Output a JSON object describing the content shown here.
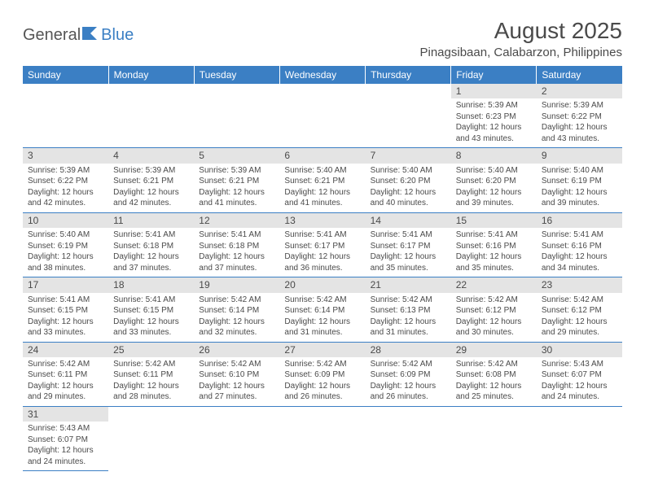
{
  "logo": {
    "text1": "General",
    "text2": "Blue"
  },
  "title": "August 2025",
  "location": "Pinagsibaan, Calabarzon, Philippines",
  "colors": {
    "header_bg": "#3b7fc4",
    "header_fg": "#ffffff",
    "daynum_bg": "#e4e4e4",
    "text": "#4a4a4a",
    "border": "#3b7fc4",
    "logo_accent": "#3b7fc4"
  },
  "weekdays": [
    "Sunday",
    "Monday",
    "Tuesday",
    "Wednesday",
    "Thursday",
    "Friday",
    "Saturday"
  ],
  "sunrise_label": "Sunrise",
  "sunset_label": "Sunset",
  "daylight_label": "Daylight",
  "hours_word": "hours",
  "minutes_word": "minutes",
  "and_word": "and",
  "days": [
    {
      "n": 1,
      "sr": "5:39 AM",
      "ss": "6:23 PM",
      "dh": 12,
      "dm": 43
    },
    {
      "n": 2,
      "sr": "5:39 AM",
      "ss": "6:22 PM",
      "dh": 12,
      "dm": 43
    },
    {
      "n": 3,
      "sr": "5:39 AM",
      "ss": "6:22 PM",
      "dh": 12,
      "dm": 42
    },
    {
      "n": 4,
      "sr": "5:39 AM",
      "ss": "6:21 PM",
      "dh": 12,
      "dm": 42
    },
    {
      "n": 5,
      "sr": "5:39 AM",
      "ss": "6:21 PM",
      "dh": 12,
      "dm": 41
    },
    {
      "n": 6,
      "sr": "5:40 AM",
      "ss": "6:21 PM",
      "dh": 12,
      "dm": 41
    },
    {
      "n": 7,
      "sr": "5:40 AM",
      "ss": "6:20 PM",
      "dh": 12,
      "dm": 40
    },
    {
      "n": 8,
      "sr": "5:40 AM",
      "ss": "6:20 PM",
      "dh": 12,
      "dm": 39
    },
    {
      "n": 9,
      "sr": "5:40 AM",
      "ss": "6:19 PM",
      "dh": 12,
      "dm": 39
    },
    {
      "n": 10,
      "sr": "5:40 AM",
      "ss": "6:19 PM",
      "dh": 12,
      "dm": 38
    },
    {
      "n": 11,
      "sr": "5:41 AM",
      "ss": "6:18 PM",
      "dh": 12,
      "dm": 37
    },
    {
      "n": 12,
      "sr": "5:41 AM",
      "ss": "6:18 PM",
      "dh": 12,
      "dm": 37
    },
    {
      "n": 13,
      "sr": "5:41 AM",
      "ss": "6:17 PM",
      "dh": 12,
      "dm": 36
    },
    {
      "n": 14,
      "sr": "5:41 AM",
      "ss": "6:17 PM",
      "dh": 12,
      "dm": 35
    },
    {
      "n": 15,
      "sr": "5:41 AM",
      "ss": "6:16 PM",
      "dh": 12,
      "dm": 35
    },
    {
      "n": 16,
      "sr": "5:41 AM",
      "ss": "6:16 PM",
      "dh": 12,
      "dm": 34
    },
    {
      "n": 17,
      "sr": "5:41 AM",
      "ss": "6:15 PM",
      "dh": 12,
      "dm": 33
    },
    {
      "n": 18,
      "sr": "5:41 AM",
      "ss": "6:15 PM",
      "dh": 12,
      "dm": 33
    },
    {
      "n": 19,
      "sr": "5:42 AM",
      "ss": "6:14 PM",
      "dh": 12,
      "dm": 32
    },
    {
      "n": 20,
      "sr": "5:42 AM",
      "ss": "6:14 PM",
      "dh": 12,
      "dm": 31
    },
    {
      "n": 21,
      "sr": "5:42 AM",
      "ss": "6:13 PM",
      "dh": 12,
      "dm": 31
    },
    {
      "n": 22,
      "sr": "5:42 AM",
      "ss": "6:12 PM",
      "dh": 12,
      "dm": 30
    },
    {
      "n": 23,
      "sr": "5:42 AM",
      "ss": "6:12 PM",
      "dh": 12,
      "dm": 29
    },
    {
      "n": 24,
      "sr": "5:42 AM",
      "ss": "6:11 PM",
      "dh": 12,
      "dm": 29
    },
    {
      "n": 25,
      "sr": "5:42 AM",
      "ss": "6:11 PM",
      "dh": 12,
      "dm": 28
    },
    {
      "n": 26,
      "sr": "5:42 AM",
      "ss": "6:10 PM",
      "dh": 12,
      "dm": 27
    },
    {
      "n": 27,
      "sr": "5:42 AM",
      "ss": "6:09 PM",
      "dh": 12,
      "dm": 26
    },
    {
      "n": 28,
      "sr": "5:42 AM",
      "ss": "6:09 PM",
      "dh": 12,
      "dm": 26
    },
    {
      "n": 29,
      "sr": "5:42 AM",
      "ss": "6:08 PM",
      "dh": 12,
      "dm": 25
    },
    {
      "n": 30,
      "sr": "5:43 AM",
      "ss": "6:07 PM",
      "dh": 12,
      "dm": 24
    },
    {
      "n": 31,
      "sr": "5:43 AM",
      "ss": "6:07 PM",
      "dh": 12,
      "dm": 24
    }
  ],
  "first_day_column": 5,
  "total_columns": 7
}
